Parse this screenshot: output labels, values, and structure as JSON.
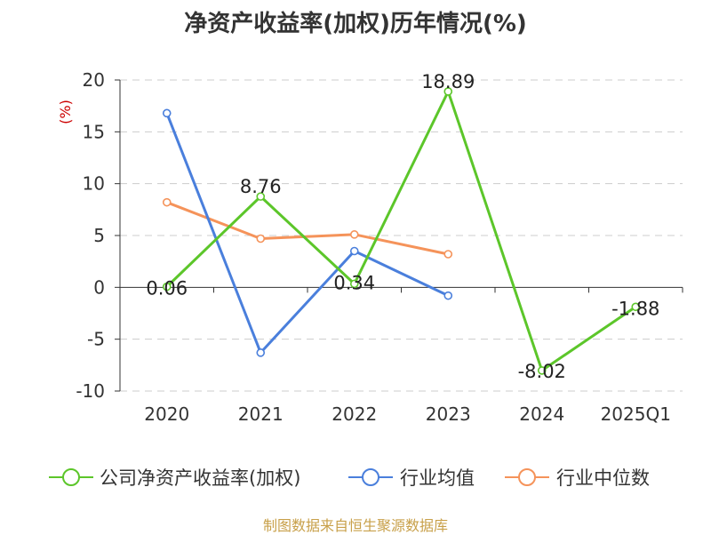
{
  "title": "净资产收益率(加权)历年情况(%)",
  "footer": "制图数据来自恒生聚源数据库",
  "chart_data": {
    "type": "line",
    "title": "净资产收益率(加权)历年情况(%)",
    "ylabel": "(%)",
    "xlabel": "",
    "categories": [
      "2020",
      "2021",
      "2022",
      "2023",
      "2024",
      "2025Q1"
    ],
    "ylim": [
      -10,
      20
    ],
    "yticks": [
      20,
      15,
      10,
      5,
      0,
      -5,
      -10
    ],
    "grid": true,
    "legend_position": "bottom",
    "series": [
      {
        "name": "公司净资产收益率(加权)",
        "color": "#5cc62a",
        "values": [
          0.06,
          8.76,
          0.34,
          18.89,
          -8.02,
          -1.88
        ],
        "labels": [
          "0.06",
          "8.76",
          "0.34",
          "18.89",
          "-8.02",
          "-1.88"
        ]
      },
      {
        "name": "行业均值",
        "color": "#4a7fdc",
        "values": [
          16.8,
          -6.3,
          3.5,
          -0.8,
          null,
          null
        ]
      },
      {
        "name": "行业中位数",
        "color": "#f5935a",
        "values": [
          8.2,
          4.7,
          5.1,
          3.2,
          null,
          null
        ]
      }
    ]
  }
}
